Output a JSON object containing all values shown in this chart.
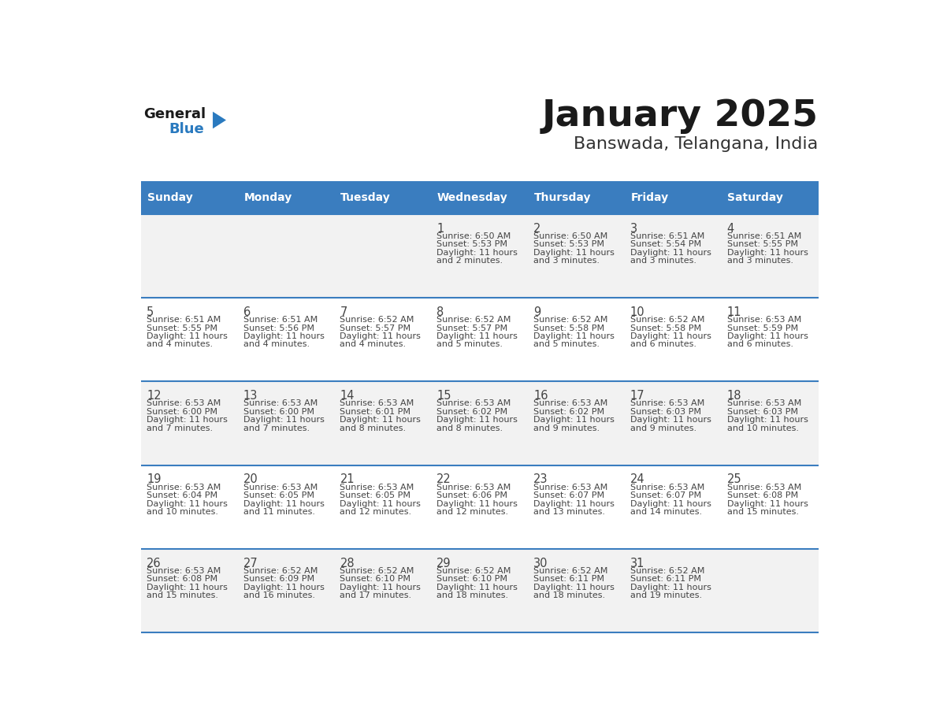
{
  "title": "January 2025",
  "subtitle": "Banswada, Telangana, India",
  "days_of_week": [
    "Sunday",
    "Monday",
    "Tuesday",
    "Wednesday",
    "Thursday",
    "Friday",
    "Saturday"
  ],
  "header_bg": "#3a7dbf",
  "header_text": "#ffffff",
  "row_bg_odd": "#f2f2f2",
  "row_bg_even": "#ffffff",
  "cell_text": "#444444",
  "divider_color": "#3a7dbf",
  "logo_general_color": "#1a1a1a",
  "logo_blue_color": "#2a7abf",
  "weeks": [
    [
      {
        "day": "",
        "sunrise": "",
        "sunset": "",
        "daylight": ""
      },
      {
        "day": "",
        "sunrise": "",
        "sunset": "",
        "daylight": ""
      },
      {
        "day": "",
        "sunrise": "",
        "sunset": "",
        "daylight": ""
      },
      {
        "day": "1",
        "sunrise": "6:50 AM",
        "sunset": "5:53 PM",
        "daylight": "11 hours and 2 minutes."
      },
      {
        "day": "2",
        "sunrise": "6:50 AM",
        "sunset": "5:53 PM",
        "daylight": "11 hours and 3 minutes."
      },
      {
        "day": "3",
        "sunrise": "6:51 AM",
        "sunset": "5:54 PM",
        "daylight": "11 hours and 3 minutes."
      },
      {
        "day": "4",
        "sunrise": "6:51 AM",
        "sunset": "5:55 PM",
        "daylight": "11 hours and 3 minutes."
      }
    ],
    [
      {
        "day": "5",
        "sunrise": "6:51 AM",
        "sunset": "5:55 PM",
        "daylight": "11 hours and 4 minutes."
      },
      {
        "day": "6",
        "sunrise": "6:51 AM",
        "sunset": "5:56 PM",
        "daylight": "11 hours and 4 minutes."
      },
      {
        "day": "7",
        "sunrise": "6:52 AM",
        "sunset": "5:57 PM",
        "daylight": "11 hours and 4 minutes."
      },
      {
        "day": "8",
        "sunrise": "6:52 AM",
        "sunset": "5:57 PM",
        "daylight": "11 hours and 5 minutes."
      },
      {
        "day": "9",
        "sunrise": "6:52 AM",
        "sunset": "5:58 PM",
        "daylight": "11 hours and 5 minutes."
      },
      {
        "day": "10",
        "sunrise": "6:52 AM",
        "sunset": "5:58 PM",
        "daylight": "11 hours and 6 minutes."
      },
      {
        "day": "11",
        "sunrise": "6:53 AM",
        "sunset": "5:59 PM",
        "daylight": "11 hours and 6 minutes."
      }
    ],
    [
      {
        "day": "12",
        "sunrise": "6:53 AM",
        "sunset": "6:00 PM",
        "daylight": "11 hours and 7 minutes."
      },
      {
        "day": "13",
        "sunrise": "6:53 AM",
        "sunset": "6:00 PM",
        "daylight": "11 hours and 7 minutes."
      },
      {
        "day": "14",
        "sunrise": "6:53 AM",
        "sunset": "6:01 PM",
        "daylight": "11 hours and 8 minutes."
      },
      {
        "day": "15",
        "sunrise": "6:53 AM",
        "sunset": "6:02 PM",
        "daylight": "11 hours and 8 minutes."
      },
      {
        "day": "16",
        "sunrise": "6:53 AM",
        "sunset": "6:02 PM",
        "daylight": "11 hours and 9 minutes."
      },
      {
        "day": "17",
        "sunrise": "6:53 AM",
        "sunset": "6:03 PM",
        "daylight": "11 hours and 9 minutes."
      },
      {
        "day": "18",
        "sunrise": "6:53 AM",
        "sunset": "6:03 PM",
        "daylight": "11 hours and 10 minutes."
      }
    ],
    [
      {
        "day": "19",
        "sunrise": "6:53 AM",
        "sunset": "6:04 PM",
        "daylight": "11 hours and 10 minutes."
      },
      {
        "day": "20",
        "sunrise": "6:53 AM",
        "sunset": "6:05 PM",
        "daylight": "11 hours and 11 minutes."
      },
      {
        "day": "21",
        "sunrise": "6:53 AM",
        "sunset": "6:05 PM",
        "daylight": "11 hours and 12 minutes."
      },
      {
        "day": "22",
        "sunrise": "6:53 AM",
        "sunset": "6:06 PM",
        "daylight": "11 hours and 12 minutes."
      },
      {
        "day": "23",
        "sunrise": "6:53 AM",
        "sunset": "6:07 PM",
        "daylight": "11 hours and 13 minutes."
      },
      {
        "day": "24",
        "sunrise": "6:53 AM",
        "sunset": "6:07 PM",
        "daylight": "11 hours and 14 minutes."
      },
      {
        "day": "25",
        "sunrise": "6:53 AM",
        "sunset": "6:08 PM",
        "daylight": "11 hours and 15 minutes."
      }
    ],
    [
      {
        "day": "26",
        "sunrise": "6:53 AM",
        "sunset": "6:08 PM",
        "daylight": "11 hours and 15 minutes."
      },
      {
        "day": "27",
        "sunrise": "6:52 AM",
        "sunset": "6:09 PM",
        "daylight": "11 hours and 16 minutes."
      },
      {
        "day": "28",
        "sunrise": "6:52 AM",
        "sunset": "6:10 PM",
        "daylight": "11 hours and 17 minutes."
      },
      {
        "day": "29",
        "sunrise": "6:52 AM",
        "sunset": "6:10 PM",
        "daylight": "11 hours and 18 minutes."
      },
      {
        "day": "30",
        "sunrise": "6:52 AM",
        "sunset": "6:11 PM",
        "daylight": "11 hours and 18 minutes."
      },
      {
        "day": "31",
        "sunrise": "6:52 AM",
        "sunset": "6:11 PM",
        "daylight": "11 hours and 19 minutes."
      },
      {
        "day": "",
        "sunrise": "",
        "sunset": "",
        "daylight": ""
      }
    ]
  ]
}
